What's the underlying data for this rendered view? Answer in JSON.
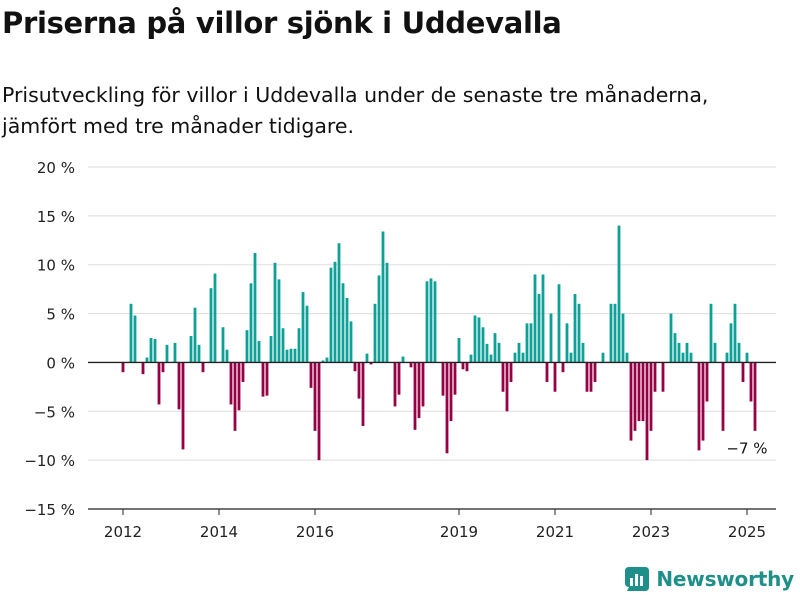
{
  "header": {
    "title": "Priserna på villor sjönk i Uddevalla",
    "subtitle": "Prisutveckling för villor i Uddevalla under de senaste tre månaderna, jämfört med tre månader tidigare."
  },
  "brand": {
    "name": "Newsworthy"
  },
  "colors": {
    "positive": "#0ea198",
    "negative": "#960044",
    "grid": "#dddddd",
    "axis": "#222222"
  },
  "chart_data": {
    "type": "bar",
    "x_start": "2011-01",
    "ylim": [
      -15,
      20
    ],
    "yticks": [
      -15,
      -10,
      -5,
      0,
      5,
      10,
      15,
      20
    ],
    "ytick_labels": [
      "−15 %",
      "−10 %",
      "−5 %",
      "0 %",
      "5 %",
      "10 %",
      "15 %",
      "20 %"
    ],
    "xtick_labels": [
      "2012",
      "2014",
      "2016",
      "2019",
      "2021",
      "2023",
      "2025"
    ],
    "xtick_positions": [
      "2012-01",
      "2014-01",
      "2016-01",
      "2019-01",
      "2021-01",
      "2023-01",
      "2025-01"
    ],
    "annotation": {
      "label": "−7 %",
      "x": "2025-01"
    },
    "values": [
      null,
      null,
      null,
      null,
      null,
      null,
      null,
      null,
      null,
      null,
      null,
      null,
      -1.0,
      null,
      6.0,
      4.8,
      null,
      -1.2,
      0.5,
      2.5,
      2.4,
      -4.3,
      -1.0,
      1.8,
      null,
      2.0,
      -4.8,
      -8.9,
      null,
      2.7,
      5.6,
      1.8,
      -1.0,
      null,
      7.6,
      9.1,
      null,
      3.6,
      1.3,
      -4.3,
      -7.0,
      -4.9,
      -2.0,
      3.3,
      8.1,
      11.2,
      2.2,
      -3.5,
      -3.4,
      2.7,
      10.2,
      8.5,
      3.5,
      1.3,
      1.4,
      1.4,
      3.5,
      7.2,
      5.8,
      -2.6,
      -7.0,
      -10.0,
      0.2,
      0.5,
      9.7,
      10.3,
      12.2,
      8.1,
      6.6,
      4.2,
      -0.9,
      -3.7,
      -6.5,
      0.9,
      -0.2,
      6.0,
      8.9,
      13.4,
      10.2,
      null,
      -4.5,
      -3.3,
      0.6,
      null,
      -0.5,
      -6.9,
      -5.7,
      -4.5,
      8.3,
      8.6,
      8.3,
      null,
      -3.4,
      -9.3,
      -6.0,
      -3.3,
      2.5,
      -0.7,
      -0.9,
      0.8,
      4.8,
      4.6,
      3.6,
      1.9,
      0.8,
      3.0,
      2.0,
      -3.0,
      -5.0,
      -2.0,
      1.0,
      2.0,
      1.0,
      4.0,
      4.0,
      9.0,
      7.0,
      9.0,
      -2.0,
      5.0,
      -3.0,
      8.0,
      -1.0,
      4.0,
      1.0,
      7.0,
      6.0,
      2.0,
      -3.0,
      -3.0,
      -2.0,
      null,
      1.0,
      null,
      6.0,
      6.0,
      14.0,
      5.0,
      1.0,
      -8.0,
      -7.0,
      -6.0,
      -6.0,
      -10.0,
      -7.0,
      -3.0,
      null,
      -3.0,
      null,
      5.0,
      3.0,
      2.0,
      1.0,
      2.0,
      1.0,
      null,
      -9.0,
      -8.0,
      -4.0,
      6.0,
      2.0,
      null,
      -7.0,
      1.0,
      4.0,
      6.0,
      2.0,
      -2.0,
      1.0,
      -4.0,
      -7.0
    ]
  }
}
